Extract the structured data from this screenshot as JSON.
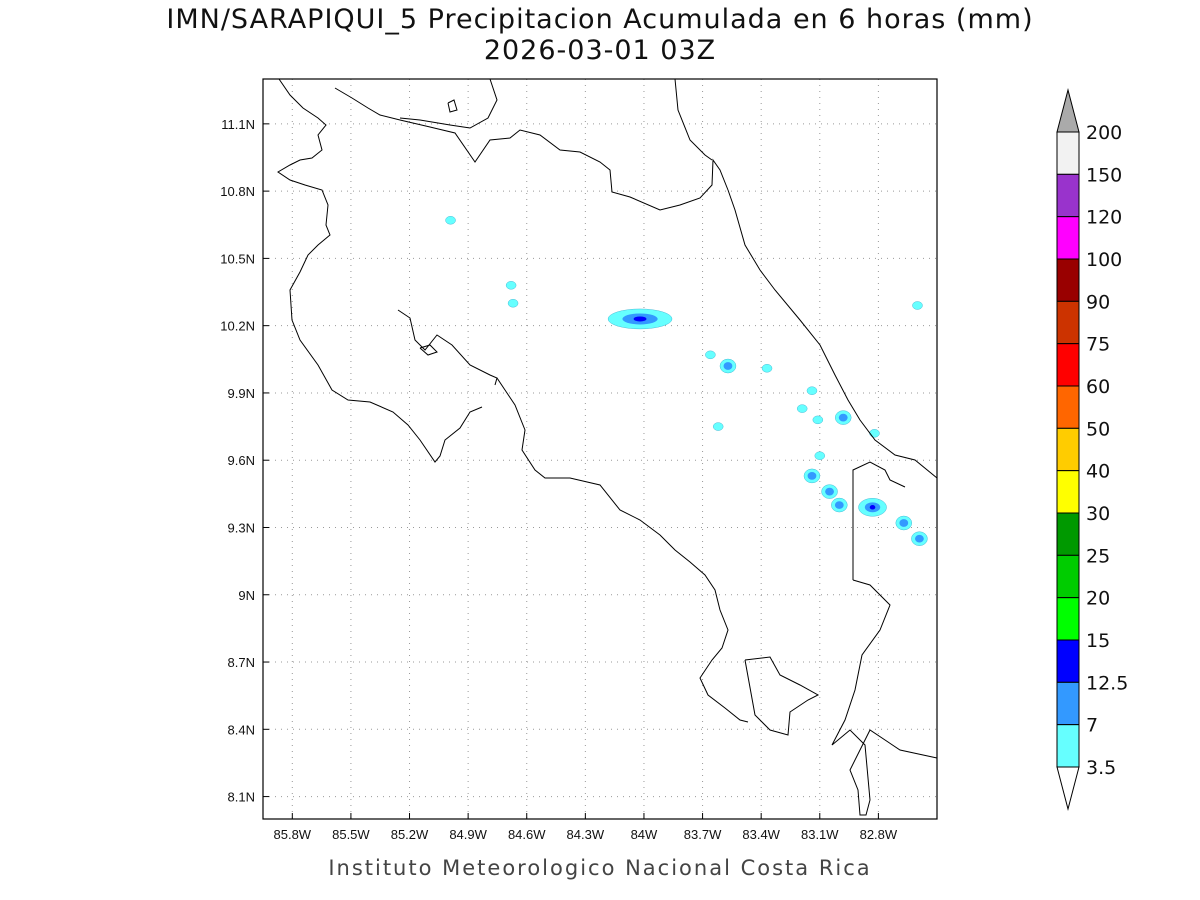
{
  "title": "IMN/SARAPIQUI_5 Precipitacion Acumulada en 6 horas (mm)",
  "subtitle": "2026-03-01 03Z",
  "footer": "Instituto Meteorologico Nacional Costa Rica",
  "map": {
    "lon_range": [
      -85.95,
      -82.5
    ],
    "lat_range": [
      8.0,
      11.3
    ],
    "lon_ticks": [
      {
        "v": -85.8,
        "label": "85.8W"
      },
      {
        "v": -85.5,
        "label": "85.5W"
      },
      {
        "v": -85.2,
        "label": "85.2W"
      },
      {
        "v": -84.9,
        "label": "84.9W"
      },
      {
        "v": -84.6,
        "label": "84.6W"
      },
      {
        "v": -84.3,
        "label": "84.3W"
      },
      {
        "v": -84.0,
        "label": "84W"
      },
      {
        "v": -83.7,
        "label": "83.7W"
      },
      {
        "v": -83.4,
        "label": "83.4W"
      },
      {
        "v": -83.1,
        "label": "83.1W"
      },
      {
        "v": -82.8,
        "label": "82.8W"
      }
    ],
    "lat_ticks": [
      {
        "v": 11.1,
        "label": "11.1N"
      },
      {
        "v": 10.8,
        "label": "10.8N"
      },
      {
        "v": 10.5,
        "label": "10.5N"
      },
      {
        "v": 10.2,
        "label": "10.2N"
      },
      {
        "v": 9.9,
        "label": "9.9N"
      },
      {
        "v": 9.6,
        "label": "9.6N"
      },
      {
        "v": 9.3,
        "label": "9.3N"
      },
      {
        "v": 9.0,
        "label": "9N"
      },
      {
        "v": 8.7,
        "label": "8.7N"
      },
      {
        "v": 8.4,
        "label": "8.4N"
      },
      {
        "v": 8.1,
        "label": "8.1N"
      }
    ],
    "precip_cells": [
      {
        "lon": -84.99,
        "lat": 10.67,
        "max": 3.5
      },
      {
        "lon": -84.68,
        "lat": 10.38,
        "max": 3.5
      },
      {
        "lon": -84.67,
        "lat": 10.3,
        "max": 3.5
      },
      {
        "lon": -84.02,
        "lat": 10.23,
        "max": 12.5
      },
      {
        "lon": -83.57,
        "lat": 10.02,
        "max": 7
      },
      {
        "lon": -83.37,
        "lat": 10.01,
        "max": 3.5
      },
      {
        "lon": -83.66,
        "lat": 10.07,
        "max": 3.5
      },
      {
        "lon": -83.62,
        "lat": 9.75,
        "max": 3.5
      },
      {
        "lon": -83.14,
        "lat": 9.91,
        "max": 3.5
      },
      {
        "lon": -83.19,
        "lat": 9.83,
        "max": 3.5
      },
      {
        "lon": -83.11,
        "lat": 9.78,
        "max": 3.5
      },
      {
        "lon": -82.98,
        "lat": 9.79,
        "max": 7
      },
      {
        "lon": -83.1,
        "lat": 9.62,
        "max": 3.5
      },
      {
        "lon": -83.14,
        "lat": 9.53,
        "max": 7
      },
      {
        "lon": -83.05,
        "lat": 9.46,
        "max": 7
      },
      {
        "lon": -83.0,
        "lat": 9.4,
        "max": 7
      },
      {
        "lon": -82.83,
        "lat": 9.39,
        "max": 12.5
      },
      {
        "lon": -82.67,
        "lat": 9.32,
        "max": 7
      },
      {
        "lon": -82.59,
        "lat": 9.25,
        "max": 7
      },
      {
        "lon": -82.6,
        "lat": 10.29,
        "max": 3.5
      },
      {
        "lon": -82.82,
        "lat": 9.72,
        "max": 3.5
      }
    ]
  },
  "colorbar": {
    "labels": [
      "200",
      "150",
      "120",
      "100",
      "90",
      "75",
      "60",
      "50",
      "40",
      "30",
      "25",
      "20",
      "15",
      "12.5",
      "7",
      "3.5"
    ],
    "colors": [
      "#f2f2f2",
      "#9933cc",
      "#ff00ff",
      "#990000",
      "#cc3300",
      "#ff0000",
      "#ff6600",
      "#ffcc00",
      "#ffff00",
      "#009900",
      "#00cc00",
      "#00ff00",
      "#0000ff",
      "#3399ff",
      "#66ffff"
    ],
    "over_color": "#aaaaaa",
    "under_color": "#ffffff"
  }
}
